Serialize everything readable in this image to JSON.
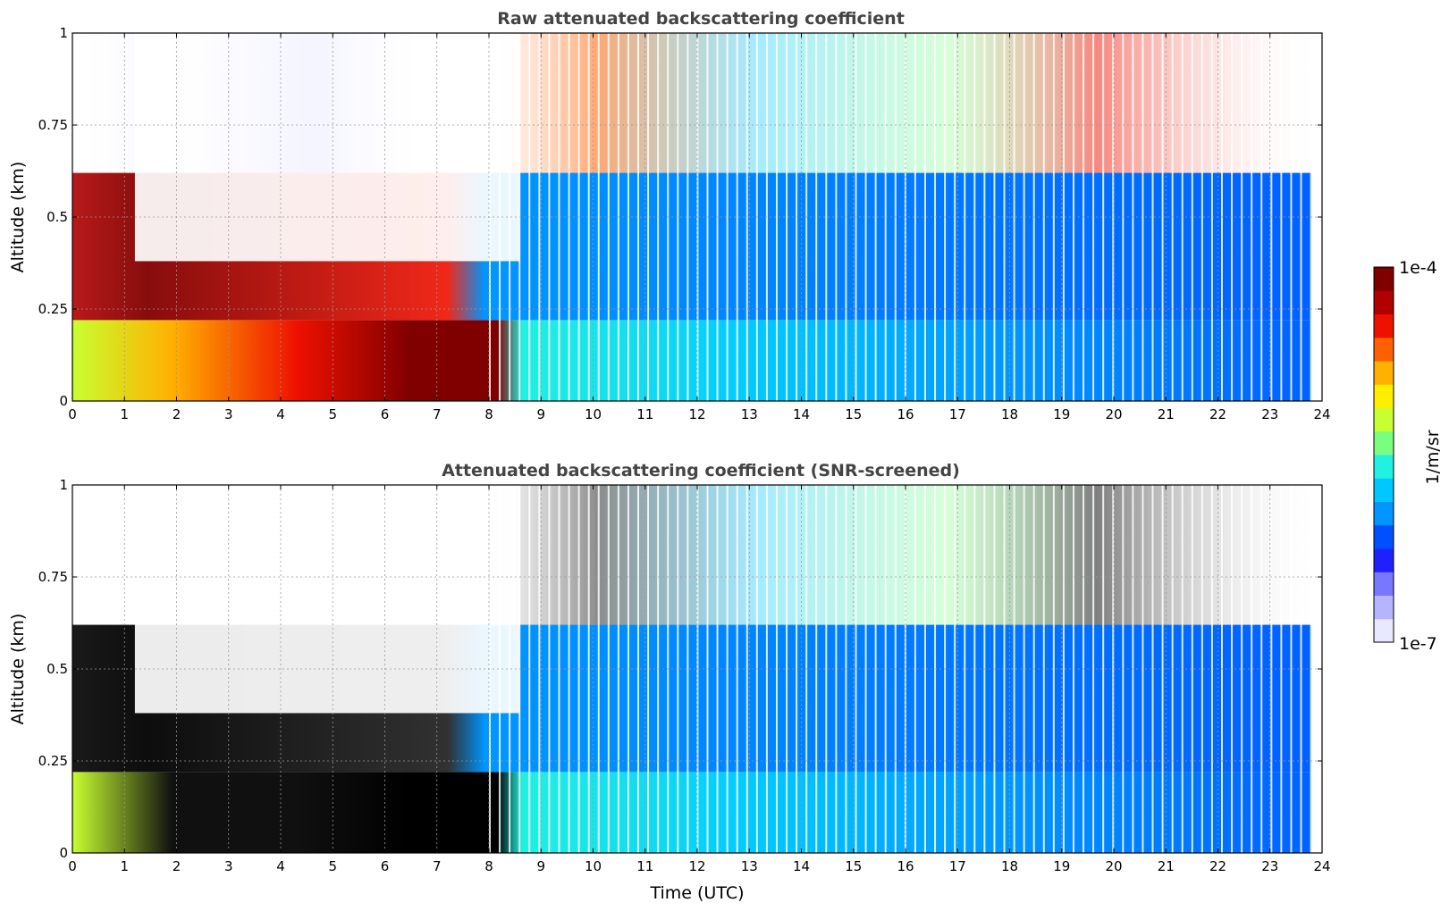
{
  "chart_data": [
    {
      "type": "heatmap",
      "title": "Raw attenuated backscattering coefficient",
      "xlabel": "",
      "ylabel": "Altitude (km)",
      "x_ticks": [
        "0",
        "1",
        "2",
        "3",
        "4",
        "5",
        "6",
        "7",
        "8",
        "9",
        "10",
        "11",
        "12",
        "13",
        "14",
        "15",
        "16",
        "17",
        "18",
        "19",
        "20",
        "21",
        "22",
        "23",
        "24"
      ],
      "y_ticks": [
        "0",
        "0.25",
        "0.5",
        "0.75",
        "1"
      ],
      "xlim": [
        0,
        24
      ],
      "ylim": [
        0,
        1
      ],
      "grid": true,
      "screened": false
    },
    {
      "type": "heatmap",
      "title": "Attenuated backscattering coefficient (SNR-screened)",
      "xlabel": "Time (UTC)",
      "ylabel": "Altitude (km)",
      "x_ticks": [
        "0",
        "1",
        "2",
        "3",
        "4",
        "5",
        "6",
        "7",
        "8",
        "9",
        "10",
        "11",
        "12",
        "13",
        "14",
        "15",
        "16",
        "17",
        "18",
        "19",
        "20",
        "21",
        "22",
        "23",
        "24"
      ],
      "y_ticks": [
        "0",
        "0.25",
        "0.5",
        "0.75",
        "1"
      ],
      "xlim": [
        0,
        24
      ],
      "ylim": [
        0,
        1
      ],
      "grid": true,
      "screened": true
    }
  ],
  "colorbar": {
    "label": "1/m/sr",
    "max_label": "1e-4",
    "min_label": "1e-7",
    "colors": [
      "#e8e8ff",
      "#b4b4ff",
      "#7878ff",
      "#2020ff",
      "#0050ff",
      "#0096ff",
      "#00c8ff",
      "#22f0e0",
      "#78ff80",
      "#c8ff30",
      "#ffee00",
      "#ffb000",
      "#ff6000",
      "#ee1000",
      "#b00000",
      "#800000"
    ]
  }
}
